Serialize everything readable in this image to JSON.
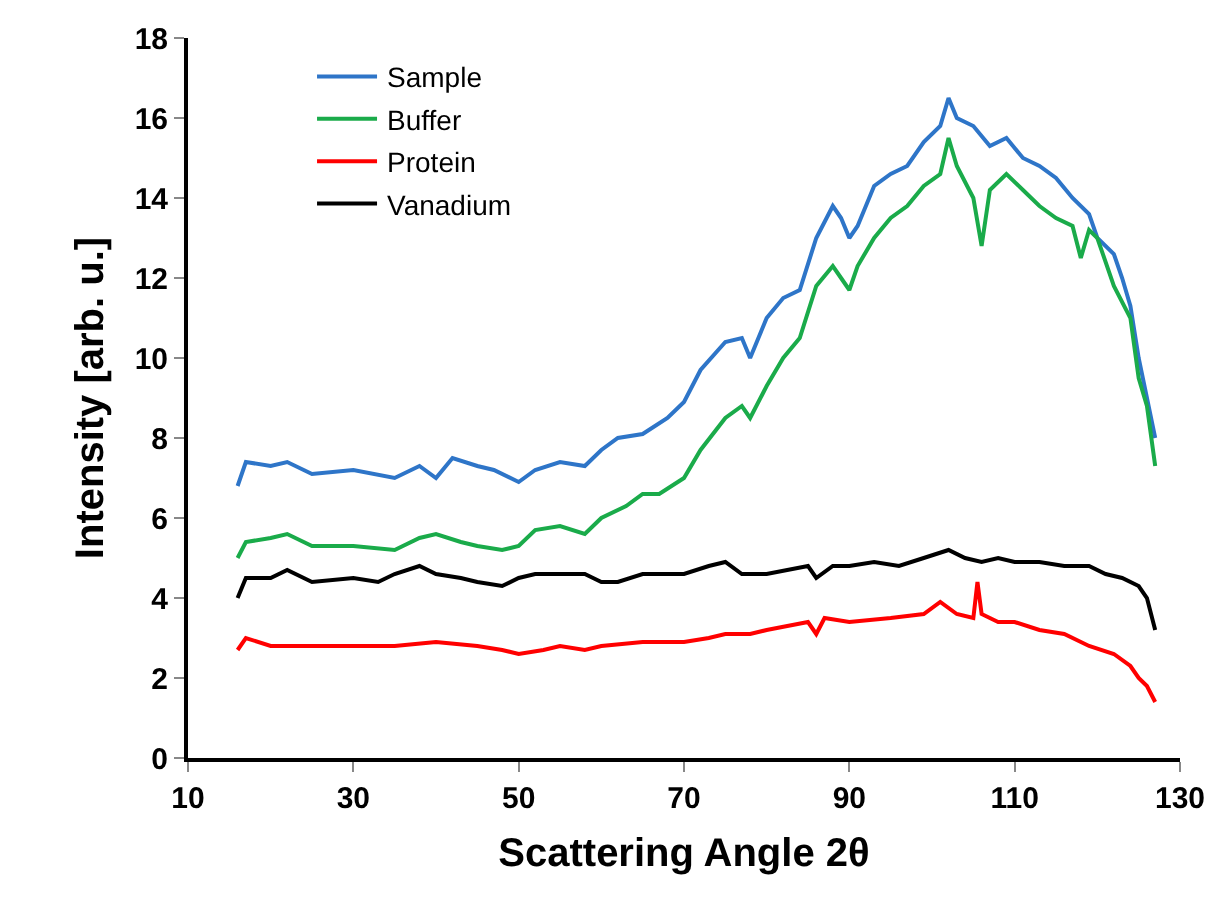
{
  "chart_data": {
    "type": "line",
    "xlabel": "Scattering Angle 2θ",
    "ylabel": "Intensity [arb. u.]",
    "xlim": [
      10,
      130
    ],
    "xticks": [
      10,
      30,
      50,
      70,
      90,
      110,
      130
    ],
    "ylim": [
      0,
      18
    ],
    "yticks": [
      0,
      2,
      4,
      6,
      8,
      10,
      12,
      14,
      16,
      18
    ],
    "grid": false,
    "legend": "top left",
    "marker": "none",
    "line_style": "solid",
    "series": [
      {
        "name": "Sample",
        "color": "#2e75c8",
        "x": [
          16,
          17,
          20,
          22,
          25,
          30,
          35,
          38,
          40,
          42,
          45,
          47,
          50,
          52,
          55,
          58,
          60,
          62,
          65,
          68,
          70,
          72,
          75,
          77,
          78,
          80,
          82,
          84,
          86,
          88,
          89,
          90,
          91,
          93,
          95,
          97,
          99,
          101,
          102,
          103,
          105,
          107,
          109,
          111,
          113,
          115,
          117,
          119,
          120,
          122,
          123,
          124,
          125,
          126,
          127
        ],
        "values": [
          6.8,
          7.4,
          7.3,
          7.4,
          7.1,
          7.2,
          7.0,
          7.3,
          7.0,
          7.5,
          7.3,
          7.2,
          6.9,
          7.2,
          7.4,
          7.3,
          7.7,
          8.0,
          8.1,
          8.5,
          8.9,
          9.7,
          10.4,
          10.5,
          10.0,
          11.0,
          11.5,
          11.7,
          13.0,
          13.8,
          13.5,
          13.0,
          13.3,
          14.3,
          14.6,
          14.8,
          15.4,
          15.8,
          16.5,
          16.0,
          15.8,
          15.3,
          15.5,
          15.0,
          14.8,
          14.5,
          14.0,
          13.6,
          13.0,
          12.6,
          12.0,
          11.3,
          10.0,
          9.0,
          8.0
        ]
      },
      {
        "name": "Buffer",
        "color": "#1aab4a",
        "x": [
          16,
          17,
          20,
          22,
          25,
          30,
          35,
          38,
          40,
          43,
          45,
          48,
          50,
          52,
          55,
          58,
          60,
          63,
          65,
          67,
          70,
          72,
          75,
          77,
          78,
          80,
          82,
          84,
          86,
          88,
          89,
          90,
          91,
          93,
          95,
          97,
          99,
          101,
          102,
          103,
          105,
          106,
          107,
          109,
          111,
          113,
          115,
          117,
          118,
          119,
          120,
          122,
          124,
          125,
          126,
          127
        ],
        "values": [
          5.0,
          5.4,
          5.5,
          5.6,
          5.3,
          5.3,
          5.2,
          5.5,
          5.6,
          5.4,
          5.3,
          5.2,
          5.3,
          5.7,
          5.8,
          5.6,
          6.0,
          6.3,
          6.6,
          6.6,
          7.0,
          7.7,
          8.5,
          8.8,
          8.5,
          9.3,
          10.0,
          10.5,
          11.8,
          12.3,
          12.0,
          11.7,
          12.3,
          13.0,
          13.5,
          13.8,
          14.3,
          14.6,
          15.5,
          14.8,
          14.0,
          12.8,
          14.2,
          14.6,
          14.2,
          13.8,
          13.5,
          13.3,
          12.5,
          13.2,
          13.0,
          11.8,
          11.0,
          9.5,
          8.8,
          7.3
        ]
      },
      {
        "name": "Protein",
        "color": "#ff0000",
        "x": [
          16,
          17,
          20,
          25,
          30,
          35,
          40,
          45,
          48,
          50,
          53,
          55,
          58,
          60,
          65,
          70,
          73,
          75,
          78,
          80,
          85,
          86,
          87,
          90,
          95,
          99,
          101,
          103,
          105,
          105.5,
          106,
          108,
          110,
          113,
          116,
          119,
          122,
          124,
          125,
          126,
          127
        ],
        "values": [
          2.7,
          3.0,
          2.8,
          2.8,
          2.8,
          2.8,
          2.9,
          2.8,
          2.7,
          2.6,
          2.7,
          2.8,
          2.7,
          2.8,
          2.9,
          2.9,
          3.0,
          3.1,
          3.1,
          3.2,
          3.4,
          3.1,
          3.5,
          3.4,
          3.5,
          3.6,
          3.9,
          3.6,
          3.5,
          4.4,
          3.6,
          3.4,
          3.4,
          3.2,
          3.1,
          2.8,
          2.6,
          2.3,
          2.0,
          1.8,
          1.4
        ]
      },
      {
        "name": "Vanadium",
        "color": "#000000",
        "x": [
          16,
          17,
          20,
          22,
          25,
          30,
          33,
          35,
          38,
          40,
          43,
          45,
          48,
          50,
          52,
          55,
          58,
          60,
          62,
          65,
          70,
          73,
          75,
          77,
          80,
          85,
          86,
          88,
          90,
          93,
          96,
          99,
          102,
          104,
          106,
          108,
          110,
          113,
          116,
          119,
          121,
          123,
          125,
          126,
          127
        ],
        "values": [
          4.0,
          4.5,
          4.5,
          4.7,
          4.4,
          4.5,
          4.4,
          4.6,
          4.8,
          4.6,
          4.5,
          4.4,
          4.3,
          4.5,
          4.6,
          4.6,
          4.6,
          4.4,
          4.4,
          4.6,
          4.6,
          4.8,
          4.9,
          4.6,
          4.6,
          4.8,
          4.5,
          4.8,
          4.8,
          4.9,
          4.8,
          5.0,
          5.2,
          5.0,
          4.9,
          5.0,
          4.9,
          4.9,
          4.8,
          4.8,
          4.6,
          4.5,
          4.3,
          4.0,
          3.2
        ]
      }
    ]
  }
}
